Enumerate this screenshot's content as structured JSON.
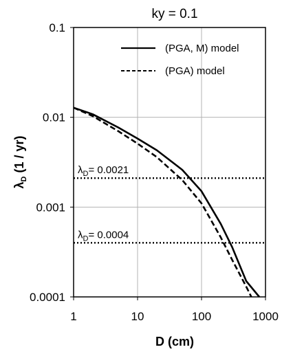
{
  "chart_data": {
    "type": "line",
    "title": "ky = 0.1",
    "xlabel": "D (cm)",
    "ylabel": {
      "main": "λ",
      "sub": "D",
      "rest": " (1 / yr)"
    },
    "xscale": "log",
    "yscale": "log",
    "xlim": [
      1,
      1000
    ],
    "ylim": [
      0.0001,
      0.1
    ],
    "xticks": [
      1,
      10,
      100,
      1000
    ],
    "xtick_labels": [
      "1",
      "10",
      "100",
      "1000"
    ],
    "yticks": [
      0.0001,
      0.001,
      0.01,
      0.1
    ],
    "ytick_labels": [
      "0.0001",
      "0.001",
      "0.01",
      "0.1"
    ],
    "grid": true,
    "legend_position": "top-right",
    "series": [
      {
        "name": "(PGA, M) model",
        "style": "solid",
        "color": "#000000",
        "x": [
          1,
          2,
          5,
          10,
          20,
          50,
          100,
          200,
          300,
          500,
          800
        ],
        "y": [
          0.0128,
          0.0108,
          0.0077,
          0.0058,
          0.0043,
          0.0026,
          0.0015,
          0.00065,
          0.00036,
          0.00015,
          0.0001
        ]
      },
      {
        "name": "(PGA) model",
        "style": "dashed",
        "color": "#000000",
        "x": [
          1,
          2,
          5,
          10,
          20,
          50,
          100,
          200,
          300,
          500,
          600
        ],
        "y": [
          0.0128,
          0.0103,
          0.007,
          0.0051,
          0.0036,
          0.002,
          0.0011,
          0.00046,
          0.00026,
          0.00013,
          0.0001
        ]
      }
    ],
    "reference_lines": [
      {
        "y": 0.0021,
        "style": "dotted",
        "label_main": "λ",
        "label_sub": "D",
        "label_rest": "= 0.0021"
      },
      {
        "y": 0.0004,
        "style": "dotted",
        "label_main": "λ",
        "label_sub": "D",
        "label_rest": "= 0.0004"
      }
    ]
  }
}
